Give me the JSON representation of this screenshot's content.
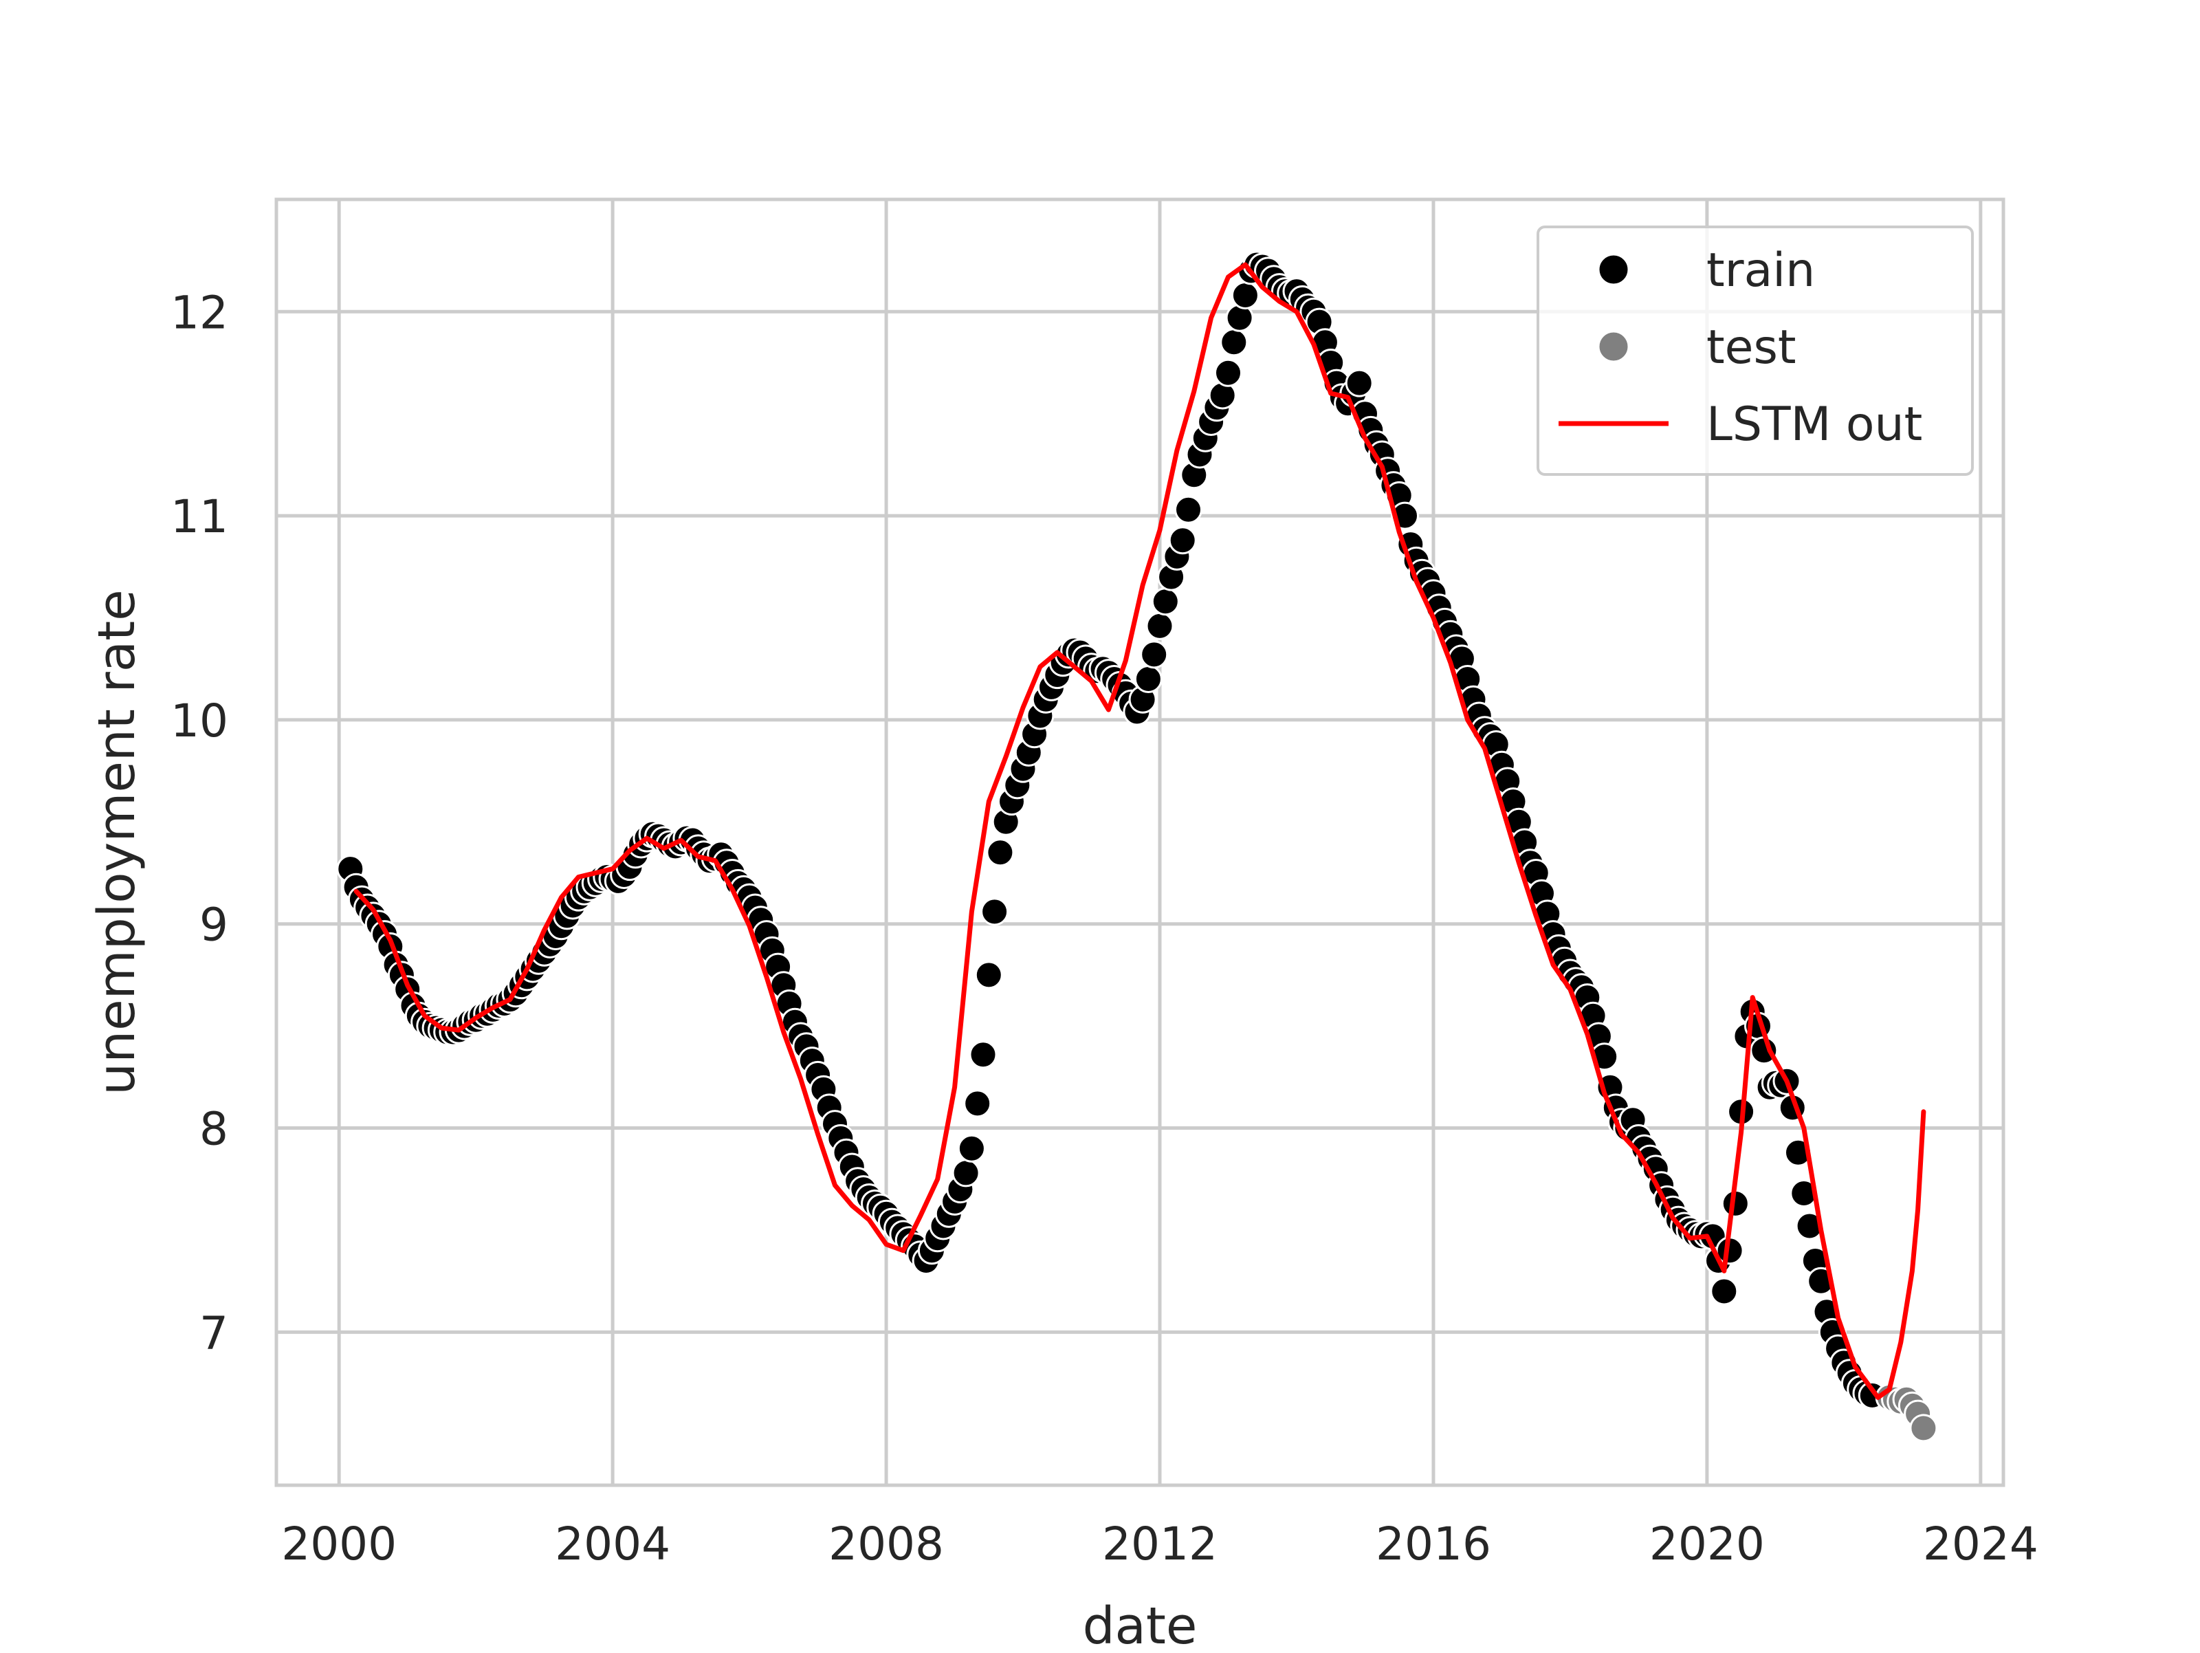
{
  "chart_data": {
    "type": "scatter",
    "title": "",
    "xlabel": "date",
    "ylabel": "unemployment rate",
    "x_ticks": [
      "2000",
      "2004",
      "2008",
      "2012",
      "2016",
      "2020",
      "2024"
    ],
    "y_ticks": [
      "7",
      "8",
      "9",
      "10",
      "11",
      "12"
    ],
    "xlim": [
      "1999-02",
      "2024-05"
    ],
    "ylim": [
      6.25,
      12.55
    ],
    "grid": true,
    "legend_position": "top-right",
    "legend": [
      {
        "label": "train",
        "kind": "scatter",
        "color": "#000000"
      },
      {
        "label": "test",
        "kind": "scatter",
        "color": "#808080"
      },
      {
        "label": "LSTM out",
        "kind": "line",
        "color": "#ff0000"
      }
    ],
    "series": [
      {
        "name": "train",
        "color": "#000000",
        "x_start": "2000-03",
        "step": "1 month",
        "values": [
          9.27,
          9.18,
          9.12,
          9.08,
          9.04,
          9.0,
          8.95,
          8.89,
          8.8,
          8.75,
          8.68,
          8.6,
          8.55,
          8.52,
          8.5,
          8.49,
          8.48,
          8.47,
          8.47,
          8.48,
          8.5,
          8.52,
          8.53,
          8.55,
          8.56,
          8.58,
          8.6,
          8.61,
          8.63,
          8.66,
          8.7,
          8.74,
          8.78,
          8.82,
          8.86,
          8.9,
          8.94,
          8.99,
          9.04,
          9.09,
          9.13,
          9.16,
          9.18,
          9.2,
          9.22,
          9.23,
          9.22,
          9.21,
          9.24,
          9.28,
          9.34,
          9.39,
          9.42,
          9.44,
          9.43,
          9.41,
          9.39,
          9.38,
          9.4,
          9.42,
          9.41,
          9.37,
          9.34,
          9.31,
          9.32,
          9.34,
          9.3,
          9.25,
          9.2,
          9.17,
          9.13,
          9.08,
          9.02,
          8.95,
          8.87,
          8.79,
          8.7,
          8.61,
          8.52,
          8.45,
          8.4,
          8.33,
          8.26,
          8.19,
          8.1,
          8.02,
          7.95,
          7.88,
          7.81,
          7.74,
          7.7,
          7.66,
          7.63,
          7.61,
          7.58,
          7.54,
          7.51,
          7.48,
          7.45,
          7.42,
          7.38,
          7.35,
          7.4,
          7.46,
          7.52,
          7.58,
          7.64,
          7.7,
          7.78,
          7.9,
          8.12,
          8.36,
          8.75,
          9.06,
          9.35,
          9.5,
          9.6,
          9.68,
          9.76,
          9.84,
          9.93,
          10.02,
          10.1,
          10.16,
          10.22,
          10.28,
          10.32,
          10.34,
          10.33,
          10.3,
          10.26,
          10.24,
          10.25,
          10.23,
          10.2,
          10.17,
          10.13,
          10.08,
          10.04,
          10.1,
          10.2,
          10.32,
          10.46,
          10.58,
          10.7,
          10.8,
          10.88,
          11.03,
          11.2,
          11.3,
          11.38,
          11.46,
          11.53,
          11.59,
          11.7,
          11.85,
          11.97,
          12.08,
          12.2,
          12.23,
          12.22,
          12.2,
          12.16,
          12.12,
          12.1,
          12.09,
          12.1,
          12.06,
          12.02,
          12.0,
          11.95,
          11.85,
          11.75,
          11.65,
          11.58,
          11.55,
          11.6,
          11.65,
          11.5,
          11.42,
          11.35,
          11.3,
          11.22,
          11.15,
          11.1,
          11.0,
          10.86,
          10.78,
          10.72,
          10.68,
          10.62,
          10.55,
          10.48,
          10.42,
          10.35,
          10.3,
          10.2,
          10.1,
          10.02,
          9.95,
          9.92,
          9.88,
          9.78,
          9.7,
          9.6,
          9.5,
          9.4,
          9.3,
          9.25,
          9.15,
          9.05,
          8.95,
          8.88,
          8.82,
          8.76,
          8.72,
          8.69,
          8.64,
          8.55,
          8.45,
          8.35,
          8.2,
          8.1,
          8.03,
          8.0,
          8.04,
          7.95,
          7.9,
          7.85,
          7.8,
          7.72,
          7.65,
          7.6,
          7.55,
          7.52,
          7.5,
          7.48,
          7.47,
          7.48,
          7.47,
          7.35,
          7.2,
          7.4,
          7.63,
          8.08,
          8.45,
          8.57,
          8.5,
          8.38,
          8.2,
          8.22,
          8.21,
          8.23,
          8.1,
          7.88,
          7.68,
          7.52,
          7.35,
          7.25,
          7.1,
          7.0,
          6.92,
          6.85,
          6.8,
          6.75,
          6.72,
          6.7,
          6.69
        ]
      },
      {
        "name": "test",
        "color": "#808080",
        "x_start": "2022-09",
        "step": "1 month",
        "values": [
          6.68,
          6.67,
          6.66,
          6.67,
          6.64,
          6.6,
          6.53
        ]
      },
      {
        "name": "LSTM out",
        "color": "#ff0000",
        "type": "line",
        "points": [
          [
            "2000-04",
            9.16
          ],
          [
            "2000-07",
            9.07
          ],
          [
            "2000-10",
            8.92
          ],
          [
            "2001-01",
            8.7
          ],
          [
            "2001-04",
            8.55
          ],
          [
            "2001-07",
            8.49
          ],
          [
            "2001-10",
            8.48
          ],
          [
            "2002-01",
            8.54
          ],
          [
            "2002-04",
            8.59
          ],
          [
            "2002-07",
            8.63
          ],
          [
            "2002-10",
            8.78
          ],
          [
            "2003-01",
            8.97
          ],
          [
            "2003-04",
            9.13
          ],
          [
            "2003-07",
            9.23
          ],
          [
            "2003-10",
            9.25
          ],
          [
            "2004-01",
            9.27
          ],
          [
            "2004-04",
            9.36
          ],
          [
            "2004-07",
            9.42
          ],
          [
            "2004-10",
            9.37
          ],
          [
            "2005-01",
            9.41
          ],
          [
            "2005-04",
            9.33
          ],
          [
            "2005-07",
            9.31
          ],
          [
            "2005-10",
            9.17
          ],
          [
            "2006-01",
            8.99
          ],
          [
            "2006-04",
            8.74
          ],
          [
            "2006-07",
            8.47
          ],
          [
            "2006-10",
            8.24
          ],
          [
            "2007-01",
            7.97
          ],
          [
            "2007-04",
            7.72
          ],
          [
            "2007-07",
            7.62
          ],
          [
            "2007-10",
            7.55
          ],
          [
            "2008-01",
            7.43
          ],
          [
            "2008-04",
            7.4
          ],
          [
            "2008-07",
            7.57
          ],
          [
            "2008-10",
            7.75
          ],
          [
            "2009-01",
            8.2
          ],
          [
            "2009-04",
            9.06
          ],
          [
            "2009-07",
            9.6
          ],
          [
            "2009-10",
            9.82
          ],
          [
            "2010-01",
            10.06
          ],
          [
            "2010-04",
            10.26
          ],
          [
            "2010-07",
            10.33
          ],
          [
            "2010-10",
            10.26
          ],
          [
            "2011-01",
            10.19
          ],
          [
            "2011-04",
            10.05
          ],
          [
            "2011-07",
            10.29
          ],
          [
            "2011-10",
            10.66
          ],
          [
            "2012-01",
            10.93
          ],
          [
            "2012-04",
            11.32
          ],
          [
            "2012-07",
            11.61
          ],
          [
            "2012-10",
            11.97
          ],
          [
            "2013-01",
            12.17
          ],
          [
            "2013-04",
            12.23
          ],
          [
            "2013-07",
            12.12
          ],
          [
            "2013-10",
            12.05
          ],
          [
            "2014-01",
            12.0
          ],
          [
            "2014-04",
            11.84
          ],
          [
            "2014-07",
            11.6
          ],
          [
            "2014-10",
            11.58
          ],
          [
            "2015-01",
            11.38
          ],
          [
            "2015-04",
            11.24
          ],
          [
            "2015-07",
            10.92
          ],
          [
            "2015-10",
            10.68
          ],
          [
            "2016-01",
            10.5
          ],
          [
            "2016-04",
            10.28
          ],
          [
            "2016-07",
            10.0
          ],
          [
            "2016-10",
            9.86
          ],
          [
            "2017-01",
            9.58
          ],
          [
            "2017-04",
            9.3
          ],
          [
            "2017-07",
            9.04
          ],
          [
            "2017-10",
            8.8
          ],
          [
            "2018-01",
            8.68
          ],
          [
            "2018-04",
            8.46
          ],
          [
            "2018-07",
            8.17
          ],
          [
            "2018-10",
            7.97
          ],
          [
            "2019-01",
            7.88
          ],
          [
            "2019-04",
            7.73
          ],
          [
            "2019-07",
            7.56
          ],
          [
            "2019-10",
            7.46
          ],
          [
            "2020-01",
            7.47
          ],
          [
            "2020-04",
            7.3
          ],
          [
            "2020-07",
            7.98
          ],
          [
            "2020-09",
            8.64
          ],
          [
            "2020-12",
            8.38
          ],
          [
            "2021-03",
            8.23
          ],
          [
            "2021-06",
            8.0
          ],
          [
            "2021-09",
            7.5
          ],
          [
            "2021-12",
            7.07
          ],
          [
            "2022-03",
            6.83
          ],
          [
            "2022-07",
            6.68
          ],
          [
            "2022-09",
            6.72
          ],
          [
            "2022-11",
            6.95
          ],
          [
            "2023-01",
            7.3
          ],
          [
            "2023-02",
            7.6
          ],
          [
            "2023-03",
            8.08
          ]
        ]
      }
    ]
  }
}
